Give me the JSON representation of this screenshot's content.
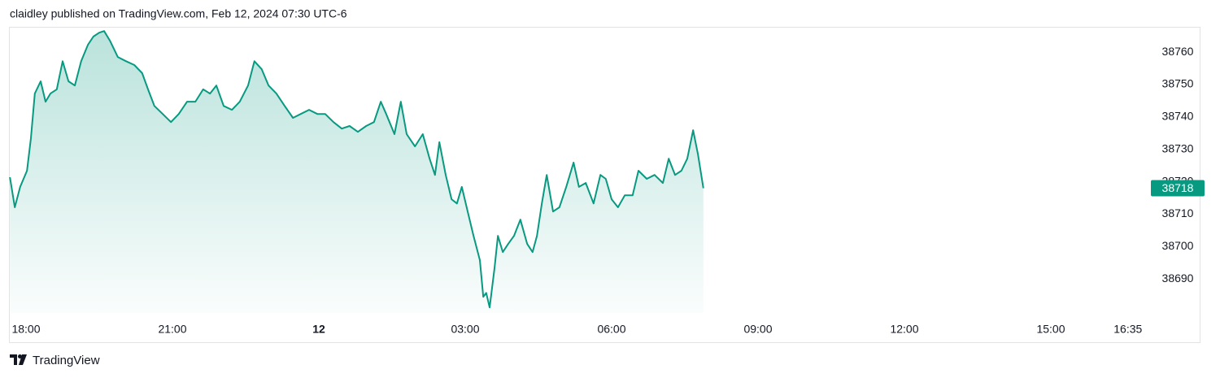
{
  "chart_data": {
    "type": "line",
    "title": "claidley published on TradingView.com, Feb 12, 2024 07:30 UTC-6",
    "branding": "TradingView",
    "color": "#089981",
    "x": [
      -0.33,
      -0.23,
      -0.12,
      0.02,
      0.1,
      0.18,
      0.3,
      0.4,
      0.5,
      0.63,
      0.75,
      0.87,
      1,
      1.13,
      1.27,
      1.38,
      1.5,
      1.6,
      1.72,
      1.88,
      2.05,
      2.22,
      2.38,
      2.5,
      2.63,
      2.8,
      2.97,
      3.13,
      3.3,
      3.47,
      3.63,
      3.77,
      3.9,
      4.05,
      4.22,
      4.38,
      4.55,
      4.68,
      4.83,
      4.97,
      5.13,
      5.3,
      5.47,
      5.63,
      5.8,
      5.97,
      6.13,
      6.3,
      6.47,
      6.63,
      6.8,
      6.97,
      7.13,
      7.27,
      7.38,
      7.55,
      7.68,
      7.8,
      7.97,
      8.13,
      8.27,
      8.38,
      8.47,
      8.6,
      8.72,
      8.83,
      8.93,
      9.05,
      9.17,
      9.3,
      9.37,
      9.43,
      9.5,
      9.6,
      9.67,
      9.77,
      9.88,
      10,
      10.13,
      10.27,
      10.38,
      10.47,
      10.57,
      10.67,
      10.8,
      10.93,
      11.07,
      11.22,
      11.33,
      11.47,
      11.63,
      11.77,
      11.88,
      12,
      12.13,
      12.27,
      12.43,
      12.55,
      12.72,
      12.88,
      13.05,
      13.17,
      13.3,
      13.43,
      13.55,
      13.67,
      13.77,
      13.88
    ],
    "values": [
      38721.4,
      38712.1,
      38718.4,
      38723.4,
      38733.4,
      38747.2,
      38751.0,
      38744.7,
      38747.2,
      38748.5,
      38757.2,
      38751.0,
      38749.7,
      38757.2,
      38762.3,
      38764.8,
      38766.0,
      38766.5,
      38763.5,
      38758.5,
      38757.2,
      38756.0,
      38753.5,
      38748.5,
      38743.4,
      38740.9,
      38738.4,
      38740.9,
      38744.7,
      38744.7,
      38748.5,
      38747.2,
      38749.7,
      38743.4,
      38742.2,
      38744.7,
      38749.7,
      38757.2,
      38754.7,
      38749.7,
      38747.2,
      38743.4,
      38739.7,
      38740.9,
      38742.2,
      38740.9,
      38740.9,
      38738.4,
      38736.4,
      38737.2,
      38735.4,
      38737.2,
      38738.4,
      38744.7,
      38740.9,
      38734.7,
      38744.7,
      38734.7,
      38730.9,
      38734.7,
      38727.1,
      38722.1,
      38732.2,
      38722.1,
      38714.6,
      38713.3,
      38718.4,
      38710.8,
      38703.3,
      38695.8,
      38684.5,
      38685.7,
      38681.2,
      38693.3,
      38703.3,
      38698.3,
      38700.8,
      38703.3,
      38708.3,
      38700.8,
      38698.3,
      38703.3,
      38713.3,
      38722.1,
      38710.8,
      38712.1,
      38718.4,
      38725.9,
      38718.4,
      38719.6,
      38713.3,
      38722.1,
      38720.9,
      38714.6,
      38712.1,
      38715.8,
      38715.8,
      38723.4,
      38720.9,
      38722.1,
      38719.6,
      38727.1,
      38722.1,
      38723.4,
      38727.1,
      38735.9,
      38728.4,
      38718
    ],
    "xlim": [
      -0.3333,
      22.9667
    ],
    "xticks": [
      {
        "value": 0,
        "label": "18:00"
      },
      {
        "value": 3,
        "label": "21:00"
      },
      {
        "value": 6,
        "label": "12"
      },
      {
        "value": 9,
        "label": "03:00"
      },
      {
        "value": 12,
        "label": "06:00"
      },
      {
        "value": 15,
        "label": "09:00"
      },
      {
        "value": 18,
        "label": "12:00"
      },
      {
        "value": 21,
        "label": "15:00"
      },
      {
        "value": 22.58,
        "label": "16:35"
      }
    ],
    "ylim": [
      38679.5,
      38767.8
    ],
    "yticks": [
      38690,
      38700,
      38710,
      38720,
      38730,
      38740,
      38750,
      38760
    ]
  }
}
